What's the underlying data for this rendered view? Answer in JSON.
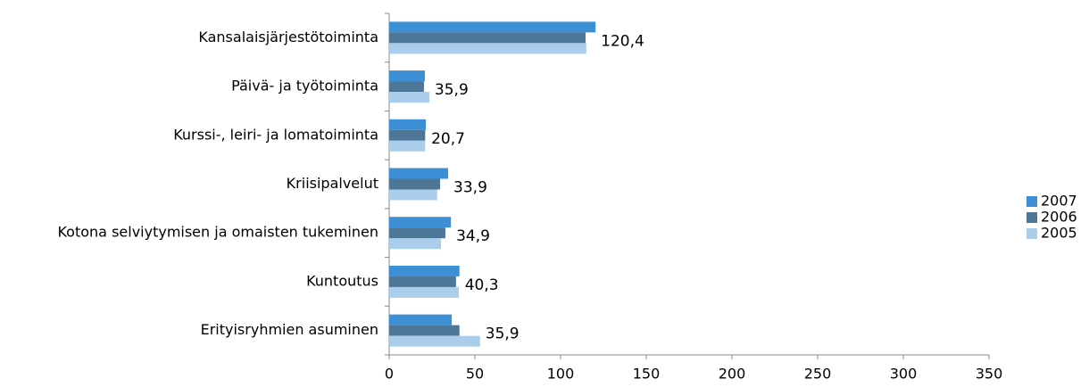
{
  "chart_data": {
    "type": "hbar",
    "categories": [
      "Kansalaisjärjestötoiminta",
      "Päivä- ja työtoiminta",
      "Kurssi-, leiri- ja lomatoiminta",
      "Kriisipalvelut",
      "Kotona selviytymisen ja omaisten tukeminen",
      "Kuntoutus",
      "Erityisryhmien asuminen"
    ],
    "series": [
      {
        "name": "2007",
        "color": "#3c8fd5",
        "values": [
          120.4,
          20.8,
          21.4,
          34.4,
          36,
          41,
          36.5
        ]
      },
      {
        "name": "2006",
        "color": "#4e7696",
        "values": [
          114.6,
          20.3,
          21,
          29.7,
          32.8,
          39,
          41
        ]
      },
      {
        "name": "2005",
        "color": "#a9cdea",
        "values": [
          115,
          23.4,
          21,
          28,
          30.2,
          40.6,
          53
        ]
      }
    ],
    "annotations": [
      "120,4",
      "35,9",
      "20,7",
      "33,9",
      "34,9",
      "40,3",
      "35,9"
    ],
    "xlim": [
      0,
      350
    ],
    "xticks": [
      0,
      50,
      100,
      150,
      200,
      250,
      300,
      350
    ],
    "legend": "right"
  }
}
